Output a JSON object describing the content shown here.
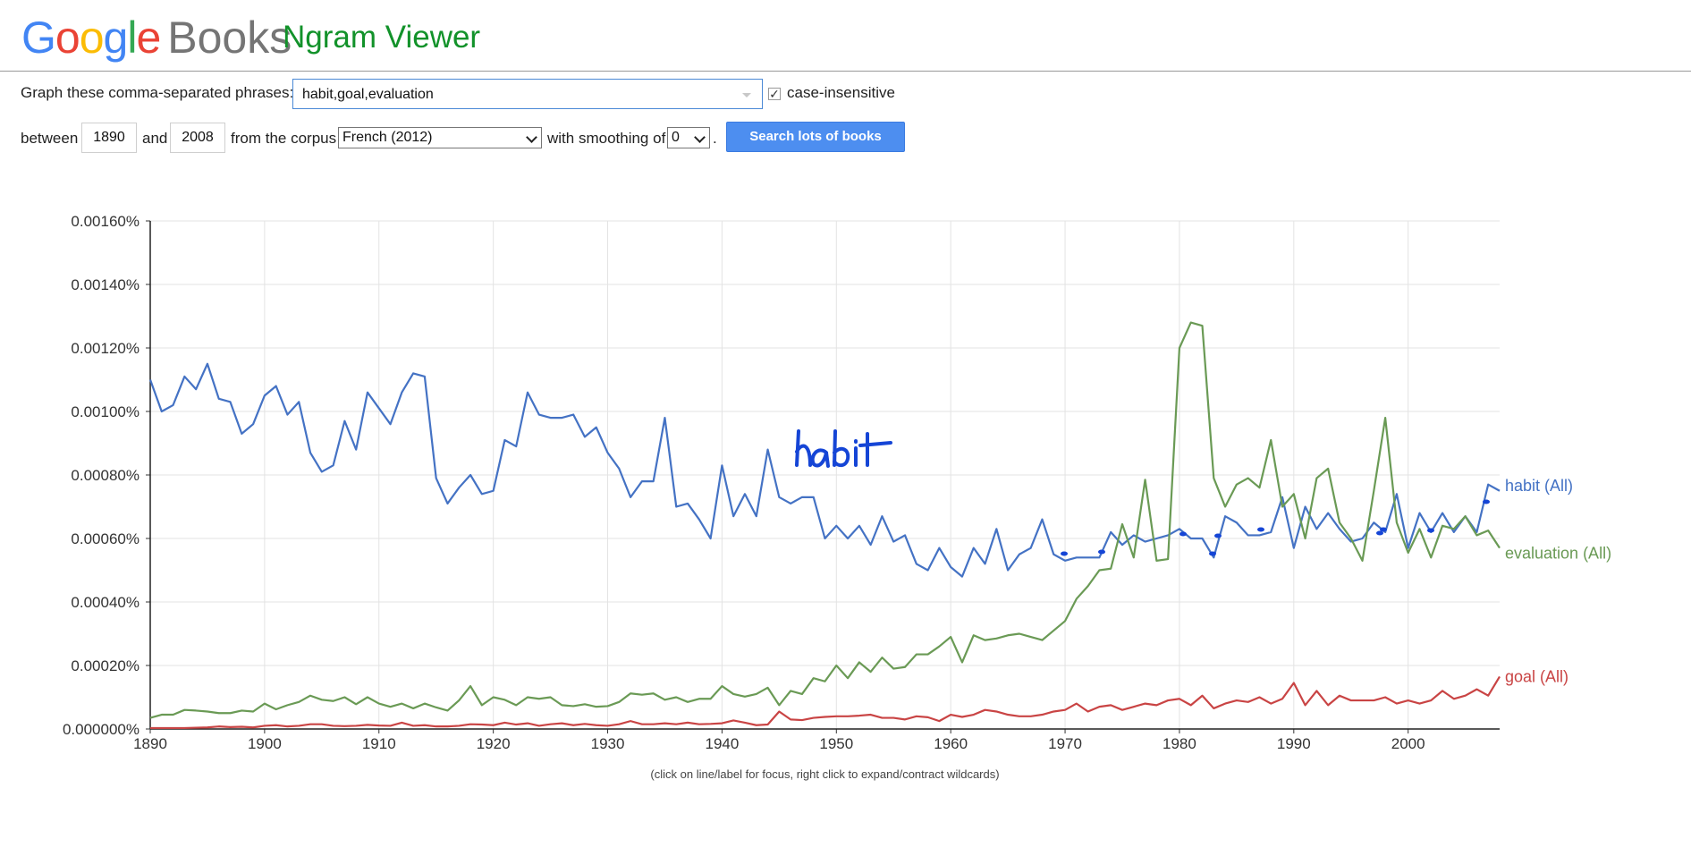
{
  "header": {
    "logo_google_letters": [
      {
        "char": "G",
        "color": "#4285F4"
      },
      {
        "char": "o",
        "color": "#EA4335"
      },
      {
        "char": "o",
        "color": "#FBBC05"
      },
      {
        "char": "g",
        "color": "#4285F4"
      },
      {
        "char": "l",
        "color": "#34A853"
      },
      {
        "char": "e",
        "color": "#EA4335"
      }
    ],
    "logo_books": "Books",
    "app_title": "Ngram Viewer"
  },
  "form": {
    "phrases_label": "Graph these comma-separated phrases:",
    "phrases_value": "habit,goal,evaluation",
    "case_insensitive_checked": true,
    "case_insensitive_label": "case-insensitive",
    "between_label": "between",
    "start_year": "1890",
    "and_label": "and",
    "end_year": "2008",
    "corpus_label": "from the corpus",
    "corpus_value": "French (2012)",
    "smoothing_label": "with smoothing of",
    "smoothing_value": "0",
    "period": ".",
    "search_button": "Search lots of books"
  },
  "footer_note": "(click on line/label for focus, right click to expand/contract wildcards)",
  "annotation": {
    "handwritten_text": "habit",
    "color": "#1545d6"
  },
  "chart_data": {
    "type": "line",
    "x": [
      1890,
      1891,
      1892,
      1893,
      1894,
      1895,
      1896,
      1897,
      1898,
      1899,
      1900,
      1901,
      1902,
      1903,
      1904,
      1905,
      1906,
      1907,
      1908,
      1909,
      1910,
      1911,
      1912,
      1913,
      1914,
      1915,
      1916,
      1917,
      1918,
      1919,
      1920,
      1921,
      1922,
      1923,
      1924,
      1925,
      1926,
      1927,
      1928,
      1929,
      1930,
      1931,
      1932,
      1933,
      1934,
      1935,
      1936,
      1937,
      1938,
      1939,
      1940,
      1941,
      1942,
      1943,
      1944,
      1945,
      1946,
      1947,
      1948,
      1949,
      1950,
      1951,
      1952,
      1953,
      1954,
      1955,
      1956,
      1957,
      1958,
      1959,
      1960,
      1961,
      1962,
      1963,
      1964,
      1965,
      1966,
      1967,
      1968,
      1969,
      1970,
      1971,
      1972,
      1973,
      1974,
      1975,
      1976,
      1977,
      1978,
      1979,
      1980,
      1981,
      1982,
      1983,
      1984,
      1985,
      1986,
      1987,
      1988,
      1989,
      1990,
      1991,
      1992,
      1993,
      1994,
      1995,
      1996,
      1997,
      1998,
      1999,
      2000,
      2001,
      2002,
      2003,
      2004,
      2005,
      2006,
      2007,
      2008
    ],
    "xticks": [
      "1890",
      "1900",
      "1910",
      "1920",
      "1930",
      "1940",
      "1950",
      "1960",
      "1970",
      "1980",
      "1990",
      "2000"
    ],
    "yticks": [
      "0.000000%",
      "0.00020%",
      "0.00040%",
      "0.00060%",
      "0.00080%",
      "0.00100%",
      "0.00120%",
      "0.00140%",
      "0.00160%"
    ],
    "ylim": [
      0,
      0.0016
    ],
    "grid": true,
    "series": [
      {
        "name": "habit (All)",
        "color": "#4472c4",
        "values": [
          0.0011,
          0.001,
          0.00102,
          0.00111,
          0.00107,
          0.00115,
          0.00104,
          0.00103,
          0.00093,
          0.00096,
          0.00105,
          0.00108,
          0.00099,
          0.00103,
          0.00087,
          0.00081,
          0.00083,
          0.00097,
          0.00088,
          0.00106,
          0.00101,
          0.00096,
          0.00106,
          0.00112,
          0.00111,
          0.00079,
          0.00071,
          0.00076,
          0.0008,
          0.00074,
          0.00075,
          0.00091,
          0.00089,
          0.00106,
          0.00099,
          0.00098,
          0.00098,
          0.00099,
          0.00092,
          0.00095,
          0.00087,
          0.00082,
          0.00073,
          0.00078,
          0.00078,
          0.00098,
          0.0007,
          0.00071,
          0.00066,
          0.0006,
          0.00083,
          0.00067,
          0.00074,
          0.00067,
          0.00088,
          0.00073,
          0.00071,
          0.00073,
          0.00073,
          0.0006,
          0.00064,
          0.0006,
          0.00064,
          0.00058,
          0.00067,
          0.00059,
          0.00061,
          0.00052,
          0.0005,
          0.00057,
          0.00051,
          0.00048,
          0.00057,
          0.00052,
          0.00063,
          0.0005,
          0.00055,
          0.00057,
          0.00066,
          0.00055,
          0.00053,
          0.00054,
          0.00054,
          0.00054,
          0.00062,
          0.00058,
          0.00061,
          0.00059,
          0.0006,
          0.00061,
          0.00063,
          0.0006,
          0.0006,
          0.00054,
          0.00067,
          0.00065,
          0.00061,
          0.00061,
          0.00062,
          0.00073,
          0.00057,
          0.0007,
          0.00063,
          0.00068,
          0.00063,
          0.00059,
          0.0006,
          0.00065,
          0.00062,
          0.00074,
          0.00057,
          0.00068,
          0.00062,
          0.00068,
          0.00062,
          0.00067,
          0.00062,
          0.00077,
          0.00075
        ]
      },
      {
        "name": "evaluation (All)",
        "color": "#6a9a55",
        "values": [
          3.5e-05,
          4.5e-05,
          4.5e-05,
          6e-05,
          5.8e-05,
          5.5e-05,
          5e-05,
          5e-05,
          5.8e-05,
          5.5e-05,
          8e-05,
          6.2e-05,
          7.5e-05,
          8.5e-05,
          0.000105,
          9.2e-05,
          8.8e-05,
          0.0001,
          7.8e-05,
          0.0001,
          8e-05,
          7e-05,
          8e-05,
          6.5e-05,
          8e-05,
          6.8e-05,
          5.8e-05,
          9e-05,
          0.000135,
          7.5e-05,
          0.0001,
          9.2e-05,
          7.5e-05,
          0.0001,
          9.5e-05,
          0.0001,
          7.5e-05,
          7.2e-05,
          7.8e-05,
          7e-05,
          7.2e-05,
          8.5e-05,
          0.000112,
          0.000108,
          0.000112,
          9.2e-05,
          0.0001,
          8.5e-05,
          9.5e-05,
          9.5e-05,
          0.000135,
          0.00011,
          0.000102,
          0.00011,
          0.00013,
          7.5e-05,
          0.00012,
          0.00011,
          0.00016,
          0.00015,
          0.0002,
          0.00016,
          0.00021,
          0.00018,
          0.000225,
          0.00019,
          0.000195,
          0.000235,
          0.000235,
          0.00026,
          0.00029,
          0.00021,
          0.000295,
          0.00028,
          0.000285,
          0.000295,
          0.0003,
          0.00029,
          0.00028,
          0.00031,
          0.00034,
          0.00041,
          0.00045,
          0.0005,
          0.000505,
          0.000645,
          0.00054,
          0.000785,
          0.00053,
          0.000535,
          0.0012,
          0.00128,
          0.00127,
          0.00079,
          0.0007,
          0.00077,
          0.00079,
          0.00076,
          0.00091,
          0.0007,
          0.00074,
          0.0006,
          0.00079,
          0.00082,
          0.00065,
          0.0006,
          0.00053,
          0.00075,
          0.00098,
          0.00065,
          0.000555,
          0.00063,
          0.00054,
          0.00064,
          0.00063,
          0.00067,
          0.00061,
          0.000625,
          0.00057
        ]
      },
      {
        "name": "goal (All)",
        "color": "#c94444",
        "values": [
          3e-06,
          3e-06,
          3e-06,
          3e-06,
          4e-06,
          5e-06,
          8e-06,
          6e-06,
          7e-06,
          5e-06,
          1e-05,
          1.2e-05,
          8e-06,
          1e-05,
          1.5e-05,
          1.5e-05,
          1e-05,
          9e-06,
          1e-05,
          1.3e-05,
          1.1e-05,
          1e-05,
          2e-05,
          1e-05,
          1.2e-05,
          8e-06,
          8e-06,
          1e-05,
          1.5e-05,
          1.4e-05,
          1.2e-05,
          2e-05,
          1.4e-05,
          1.8e-05,
          1e-05,
          1.5e-05,
          1.8e-05,
          1.2e-05,
          1.6e-05,
          1.2e-05,
          1e-05,
          1.5e-05,
          2.5e-05,
          1.5e-05,
          1.5e-05,
          1.8e-05,
          1.5e-05,
          2e-05,
          1.5e-05,
          1.6e-05,
          1.8e-05,
          2.7e-05,
          2e-05,
          1.2e-05,
          1.4e-05,
          5.5e-05,
          3e-05,
          2.8e-05,
          3.5e-05,
          3.8e-05,
          4e-05,
          4e-05,
          4.2e-05,
          4.5e-05,
          3.5e-05,
          3.5e-05,
          3e-05,
          4e-05,
          3.7e-05,
          2.5e-05,
          4.5e-05,
          3.8e-05,
          4.5e-05,
          6e-05,
          5.5e-05,
          4.5e-05,
          4e-05,
          4e-05,
          4.5e-05,
          5.5e-05,
          6e-05,
          8e-05,
          5.5e-05,
          7e-05,
          7.5e-05,
          6e-05,
          7e-05,
          8e-05,
          7.5e-05,
          9e-05,
          9.5e-05,
          7.5e-05,
          0.000105,
          6.5e-05,
          8e-05,
          9e-05,
          8.5e-05,
          0.0001,
          8e-05,
          9.5e-05,
          0.000145,
          7.5e-05,
          0.00012,
          7.5e-05,
          0.000105,
          9e-05,
          9e-05,
          9e-05,
          0.0001,
          8e-05,
          9e-05,
          8e-05,
          9e-05,
          0.00012,
          9.5e-05,
          0.000105,
          0.000125,
          0.000105,
          0.000165
        ]
      }
    ]
  }
}
